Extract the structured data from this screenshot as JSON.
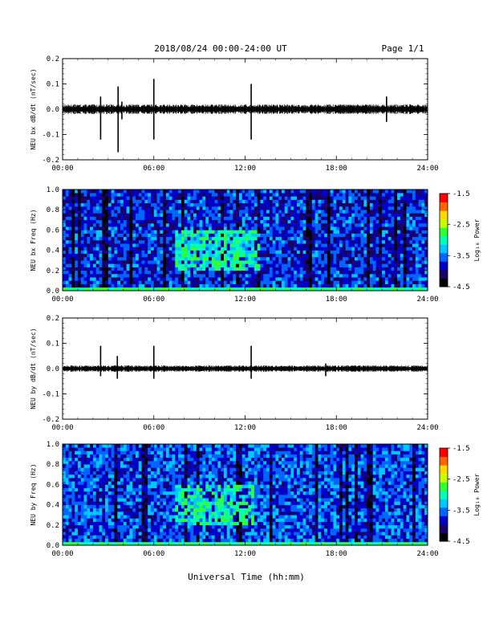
{
  "header": {
    "title": "2018/08/24  00:00-24:00 UT",
    "page": "Page 1/1"
  },
  "footer": {
    "xlabel": "Universal Time (hh:mm)"
  },
  "chart_data": [
    {
      "type": "line",
      "ylabel": "NEU bx dB/dt (nT/sec)",
      "xlabel": "",
      "x_ticks": [
        "00:00",
        "06:00",
        "12:00",
        "18:00",
        "24:00"
      ],
      "xlim": [
        0,
        24
      ],
      "ylim": [
        -0.2,
        0.2
      ],
      "y_ticks": [
        -0.2,
        -0.1,
        0.0,
        0.1,
        0.2
      ],
      "y_tick_labels": [
        "-0.2",
        "-0.1",
        "0.0",
        "0.1",
        "0.2"
      ],
      "baseline": 0.0,
      "noise_amplitude": 0.012,
      "spikes": [
        {
          "t": 2.5,
          "min": -0.12,
          "max": 0.05
        },
        {
          "t": 3.65,
          "min": -0.17,
          "max": 0.09
        },
        {
          "t": 3.9,
          "min": -0.04,
          "max": 0.03
        },
        {
          "t": 6.0,
          "min": -0.12,
          "max": 0.12
        },
        {
          "t": 12.4,
          "min": -0.12,
          "max": 0.1
        },
        {
          "t": 21.3,
          "min": -0.05,
          "max": 0.05
        }
      ]
    },
    {
      "type": "heatmap",
      "ylabel": "NEU bx Freq (Hz)",
      "x_ticks": [
        "00:00",
        "06:00",
        "12:00",
        "18:00",
        "24:00"
      ],
      "xlim": [
        0,
        24
      ],
      "ylim": [
        0.0,
        1.0
      ],
      "y_ticks": [
        0.0,
        0.2,
        0.4,
        0.6,
        0.8,
        1.0
      ],
      "y_tick_labels": [
        "0.0",
        "0.2",
        "0.4",
        "0.6",
        "0.8",
        "1.0"
      ],
      "colorbar": {
        "label": "Log₁₀ Power",
        "min": -4.5,
        "max": -1.5,
        "tick_labels": [
          "-1.5",
          "-2.5",
          "-3.5",
          "-4.5"
        ]
      },
      "background_level": -3.8,
      "enhancement": {
        "t_range": [
          7.5,
          13.0
        ],
        "f_range": [
          0.2,
          0.6
        ],
        "level": -3.0
      },
      "colors": [
        "#000000",
        "#1a0066",
        "#0000c8",
        "#0064ff",
        "#00c8ff",
        "#00ffb4",
        "#32ff32",
        "#c8ff00",
        "#ffd700",
        "#ff6400",
        "#ff0000"
      ]
    },
    {
      "type": "line",
      "ylabel": "NEU by dB/dt (nT/sec)",
      "xlabel": "",
      "x_ticks": [
        "00:00",
        "06:00",
        "12:00",
        "18:00",
        "24:00"
      ],
      "xlim": [
        0,
        24
      ],
      "ylim": [
        -0.2,
        0.2
      ],
      "y_ticks": [
        -0.2,
        -0.1,
        0.0,
        0.1,
        0.2
      ],
      "y_tick_labels": [
        "-0.2",
        "-0.1",
        "0.0",
        "0.1",
        "0.2"
      ],
      "baseline": 0.0,
      "noise_amplitude": 0.008,
      "spikes": [
        {
          "t": 2.5,
          "min": -0.03,
          "max": 0.09
        },
        {
          "t": 3.6,
          "min": -0.04,
          "max": 0.05
        },
        {
          "t": 6.0,
          "min": -0.04,
          "max": 0.09
        },
        {
          "t": 12.4,
          "min": -0.04,
          "max": 0.09
        },
        {
          "t": 17.3,
          "min": -0.03,
          "max": 0.02
        }
      ]
    },
    {
      "type": "heatmap",
      "ylabel": "NEU by Freq (Hz)",
      "x_ticks": [
        "00:00",
        "06:00",
        "12:00",
        "18:00",
        "24:00"
      ],
      "xlim": [
        0,
        24
      ],
      "ylim": [
        0.0,
        1.0
      ],
      "y_ticks": [
        0.0,
        0.2,
        0.4,
        0.6,
        0.8,
        1.0
      ],
      "y_tick_labels": [
        "0.0",
        "0.2",
        "0.4",
        "0.6",
        "0.8",
        "1.0"
      ],
      "colorbar": {
        "label": "Log₁₀ Power",
        "min": -4.5,
        "max": -1.5,
        "tick_labels": [
          "-1.5",
          "-2.5",
          "-3.5",
          "-4.5"
        ]
      },
      "background_level": -3.7,
      "enhancement": {
        "t_range": [
          7.5,
          12.5
        ],
        "f_range": [
          0.2,
          0.6
        ],
        "level": -3.0
      },
      "colors": [
        "#000000",
        "#1a0066",
        "#0000c8",
        "#0064ff",
        "#00c8ff",
        "#00ffb4",
        "#32ff32",
        "#c8ff00",
        "#ffd700",
        "#ff6400",
        "#ff0000"
      ]
    }
  ]
}
